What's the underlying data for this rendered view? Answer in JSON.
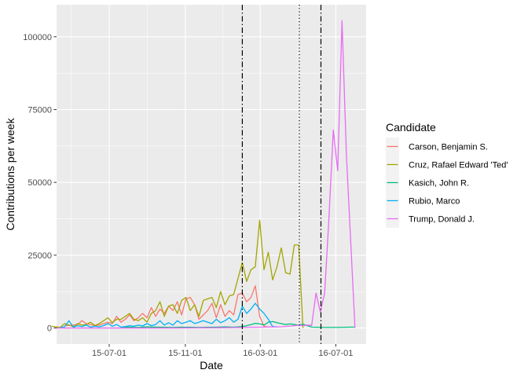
{
  "chart_data": {
    "type": "line",
    "title": "",
    "xlabel": "Date",
    "ylabel": "Contributions per week",
    "x_tick_labels": [
      "15-07-01",
      "15-11-01",
      "16-03-01",
      "16-07-01"
    ],
    "x_ticks": [
      "2015-07-01",
      "2015-11-01",
      "2016-03-01",
      "2016-07-01"
    ],
    "y_tick_labels": [
      "0",
      "25000",
      "50000",
      "75000",
      "100000"
    ],
    "y_ticks": [
      0,
      25000,
      50000,
      75000,
      100000
    ],
    "xlim": [
      "2015-04-07",
      "2016-08-19"
    ],
    "ylim": [
      -5500,
      111000
    ],
    "grid": true,
    "legend": {
      "title": "Candidate",
      "placement": "right"
    },
    "vlines": [
      {
        "date": "2016-02-01",
        "style": "dashdot"
      },
      {
        "date": "2016-05-03",
        "style": "dotted"
      },
      {
        "date": "2016-06-07",
        "style": "dashdot"
      }
    ],
    "series": [
      {
        "name": "Carson, Benjamin S.",
        "color": "#F8766D",
        "x": [
          "2015-04-20",
          "2015-04-27",
          "2015-05-04",
          "2015-05-11",
          "2015-05-18",
          "2015-05-25",
          "2015-06-01",
          "2015-06-08",
          "2015-06-15",
          "2015-06-22",
          "2015-06-29",
          "2015-07-06",
          "2015-07-13",
          "2015-07-20",
          "2015-07-27",
          "2015-08-03",
          "2015-08-10",
          "2015-08-17",
          "2015-08-24",
          "2015-08-31",
          "2015-09-07",
          "2015-09-14",
          "2015-09-21",
          "2015-09-28",
          "2015-10-05",
          "2015-10-12",
          "2015-10-19",
          "2015-10-26",
          "2015-11-02",
          "2015-11-09",
          "2015-11-16",
          "2015-11-23",
          "2015-11-30",
          "2015-12-07",
          "2015-12-14",
          "2015-12-21",
          "2015-12-28",
          "2016-01-04",
          "2016-01-11",
          "2016-01-18",
          "2016-01-25",
          "2016-02-01",
          "2016-02-08",
          "2016-02-15",
          "2016-02-22",
          "2016-02-29",
          "2016-03-07",
          "2016-03-14"
        ],
        "values": [
          800,
          900,
          1000,
          1200,
          2500,
          1500,
          1200,
          800,
          1000,
          1500,
          2000,
          1500,
          4000,
          2000,
          3000,
          4500,
          2500,
          3500,
          5000,
          3500,
          7000,
          4000,
          6500,
          5000,
          7500,
          6000,
          9000,
          4500,
          10000,
          10500,
          8000,
          3000,
          4500,
          6000,
          8500,
          3500,
          8000,
          4000,
          6000,
          4500,
          11500,
          12000,
          9000,
          10500,
          14500,
          4000,
          600,
          300
        ]
      },
      {
        "name": "Cruz, Rafael Edward 'Ted'",
        "color": "#A3A500",
        "x": [
          "2015-03-30",
          "2015-04-06",
          "2015-04-13",
          "2015-04-20",
          "2015-04-27",
          "2015-05-04",
          "2015-05-11",
          "2015-05-18",
          "2015-05-25",
          "2015-06-01",
          "2015-06-08",
          "2015-06-15",
          "2015-06-22",
          "2015-06-29",
          "2015-07-06",
          "2015-07-13",
          "2015-07-20",
          "2015-07-27",
          "2015-08-03",
          "2015-08-10",
          "2015-08-17",
          "2015-08-24",
          "2015-08-31",
          "2015-09-07",
          "2015-09-14",
          "2015-09-21",
          "2015-09-28",
          "2015-10-05",
          "2015-10-12",
          "2015-10-19",
          "2015-10-26",
          "2015-11-02",
          "2015-11-09",
          "2015-11-16",
          "2015-11-23",
          "2015-11-30",
          "2015-12-07",
          "2015-12-14",
          "2015-12-21",
          "2015-12-28",
          "2016-01-04",
          "2016-01-11",
          "2016-01-18",
          "2016-01-25",
          "2016-02-01",
          "2016-02-08",
          "2016-02-15",
          "2016-02-22",
          "2016-02-29",
          "2016-03-07",
          "2016-03-14",
          "2016-03-21",
          "2016-03-28",
          "2016-04-04",
          "2016-04-11",
          "2016-04-18",
          "2016-04-25",
          "2016-05-02",
          "2016-05-09"
        ],
        "values": [
          600,
          400,
          200,
          1500,
          1000,
          500,
          1500,
          1000,
          1200,
          2000,
          800,
          1500,
          2500,
          3500,
          1800,
          3000,
          3000,
          4000,
          5000,
          3000,
          2500,
          3500,
          2000,
          5000,
          6000,
          9000,
          4000,
          7500,
          8000,
          5000,
          9500,
          10500,
          6000,
          8000,
          4000,
          9500,
          10000,
          10500,
          7000,
          12500,
          8000,
          11000,
          11500,
          17000,
          22500,
          16000,
          20000,
          21000,
          37000,
          20000,
          26000,
          16500,
          21000,
          27500,
          19000,
          18500,
          28500,
          28500,
          0
        ]
      },
      {
        "name": "Kasich, John R.",
        "color": "#00BF7D",
        "x": [
          "2015-07-20",
          "2015-08-03",
          "2015-08-17",
          "2015-08-31",
          "2015-09-14",
          "2015-09-28",
          "2015-10-12",
          "2015-10-26",
          "2015-11-09",
          "2015-11-23",
          "2015-12-07",
          "2015-12-21",
          "2016-01-04",
          "2016-01-18",
          "2016-02-01",
          "2016-02-08",
          "2016-02-15",
          "2016-02-22",
          "2016-02-29",
          "2016-03-07",
          "2016-03-14",
          "2016-03-21",
          "2016-03-28",
          "2016-04-04",
          "2016-04-11",
          "2016-04-18",
          "2016-04-25",
          "2016-05-02",
          "2016-05-09",
          "2016-05-23",
          "2016-06-13",
          "2016-07-04",
          "2016-07-25",
          "2016-08-01"
        ],
        "values": [
          200,
          300,
          200,
          400,
          300,
          250,
          200,
          300,
          250,
          200,
          250,
          300,
          400,
          300,
          500,
          800,
          1200,
          1600,
          1400,
          1000,
          2000,
          2200,
          1800,
          1500,
          1200,
          1400,
          1200,
          1000,
          1300,
          300,
          200,
          200,
          300,
          300
        ]
      },
      {
        "name": "Rubio, Marco",
        "color": "#00B0F6",
        "x": [
          "2015-04-13",
          "2015-04-20",
          "2015-04-27",
          "2015-05-04",
          "2015-05-11",
          "2015-05-18",
          "2015-05-25",
          "2015-06-01",
          "2015-06-08",
          "2015-06-15",
          "2015-06-22",
          "2015-06-29",
          "2015-07-06",
          "2015-07-13",
          "2015-07-20",
          "2015-07-27",
          "2015-08-03",
          "2015-08-10",
          "2015-08-17",
          "2015-08-24",
          "2015-08-31",
          "2015-09-07",
          "2015-09-14",
          "2015-09-21",
          "2015-09-28",
          "2015-10-05",
          "2015-10-12",
          "2015-10-19",
          "2015-10-26",
          "2015-11-02",
          "2015-11-09",
          "2015-11-16",
          "2015-11-23",
          "2015-11-30",
          "2015-12-07",
          "2015-12-14",
          "2015-12-21",
          "2015-12-28",
          "2016-01-04",
          "2016-01-11",
          "2016-01-18",
          "2016-01-25",
          "2016-02-01",
          "2016-02-08",
          "2016-02-15",
          "2016-02-22",
          "2016-02-29",
          "2016-03-07",
          "2016-03-14",
          "2016-03-21",
          "2016-03-28"
        ],
        "values": [
          200,
          400,
          2500,
          300,
          800,
          500,
          1000,
          300,
          600,
          400,
          800,
          1500,
          600,
          1200,
          300,
          500,
          800,
          600,
          1000,
          700,
          1500,
          800,
          1200,
          2500,
          1000,
          1800,
          1000,
          2500,
          1500,
          2000,
          2500,
          1500,
          2000,
          2500,
          2000,
          1500,
          3000,
          1800,
          2500,
          3500,
          2000,
          3000,
          7500,
          5000,
          6500,
          8500,
          6500,
          5000,
          3000,
          500,
          300
        ]
      },
      {
        "name": "Trump, Donald J.",
        "color": "#E76BF3",
        "x": [
          "2015-04-06",
          "2015-07-06",
          "2015-10-05",
          "2016-01-04",
          "2016-02-01",
          "2016-03-07",
          "2016-04-04",
          "2016-04-25",
          "2016-05-02",
          "2016-05-09",
          "2016-05-16",
          "2016-05-23",
          "2016-05-30",
          "2016-06-06",
          "2016-06-13",
          "2016-06-20",
          "2016-06-27",
          "2016-07-04",
          "2016-07-11",
          "2016-07-18",
          "2016-07-25",
          "2016-08-01"
        ],
        "values": [
          0,
          0,
          0,
          100,
          200,
          300,
          400,
          800,
          1000,
          800,
          1000,
          900,
          12000,
          5500,
          12000,
          38000,
          68000,
          54000,
          105500,
          60000,
          30000,
          0
        ]
      }
    ]
  }
}
